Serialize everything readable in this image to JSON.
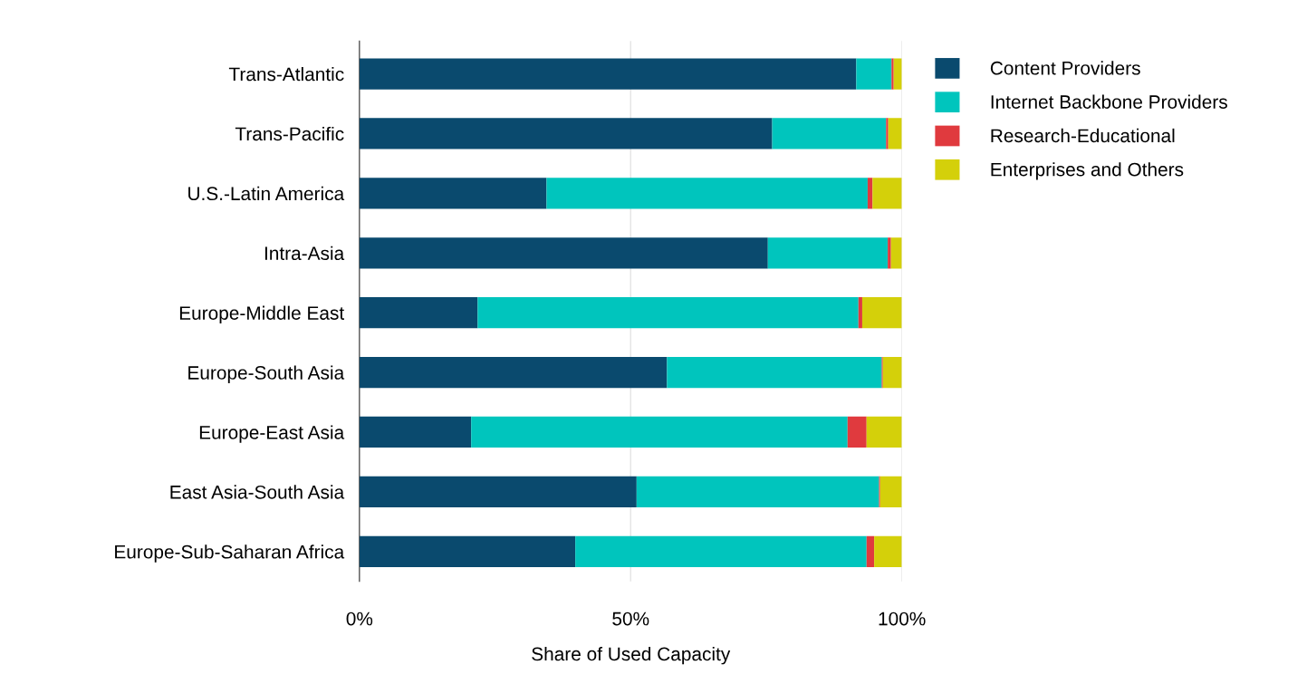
{
  "chart_data": {
    "type": "bar",
    "orientation": "horizontal",
    "stacked": true,
    "xlabel": "Share of Used Capacity",
    "categories": [
      "Trans-Atlantic",
      "Trans-Pacific",
      "U.S.-Latin America",
      "Intra-Asia",
      "Europe-Middle East",
      "Europe-South Asia",
      "Europe-East Asia",
      "East Asia-South Asia",
      "Europe-Sub-Saharan Africa"
    ],
    "series": [
      {
        "name": "Content Providers",
        "color": "#0a4a6e",
        "values": [
          91.6,
          76.1,
          34.5,
          75.3,
          21.8,
          56.7,
          20.6,
          51.1,
          39.8
        ]
      },
      {
        "name": "Internet Backbone Providers",
        "color": "#00c5bd",
        "values": [
          6.5,
          21.0,
          59.2,
          22.1,
          70.2,
          39.6,
          69.4,
          44.7,
          53.7
        ]
      },
      {
        "name": "Research-Educational",
        "color": "#e03a3e",
        "values": [
          0.4,
          0.4,
          0.9,
          0.6,
          0.7,
          0.2,
          3.5,
          0.2,
          1.4
        ]
      },
      {
        "name": "Enterprises and Others",
        "color": "#d4d00a",
        "values": [
          1.5,
          2.5,
          5.4,
          2.0,
          7.3,
          3.5,
          6.5,
          4.0,
          5.1
        ]
      }
    ],
    "xlim": [
      0,
      100
    ],
    "xticks": [
      {
        "value": 0,
        "label": "0%"
      },
      {
        "value": 50,
        "label": "50%"
      },
      {
        "value": 100,
        "label": "100%"
      }
    ],
    "grid": "x",
    "legend": "top right"
  }
}
